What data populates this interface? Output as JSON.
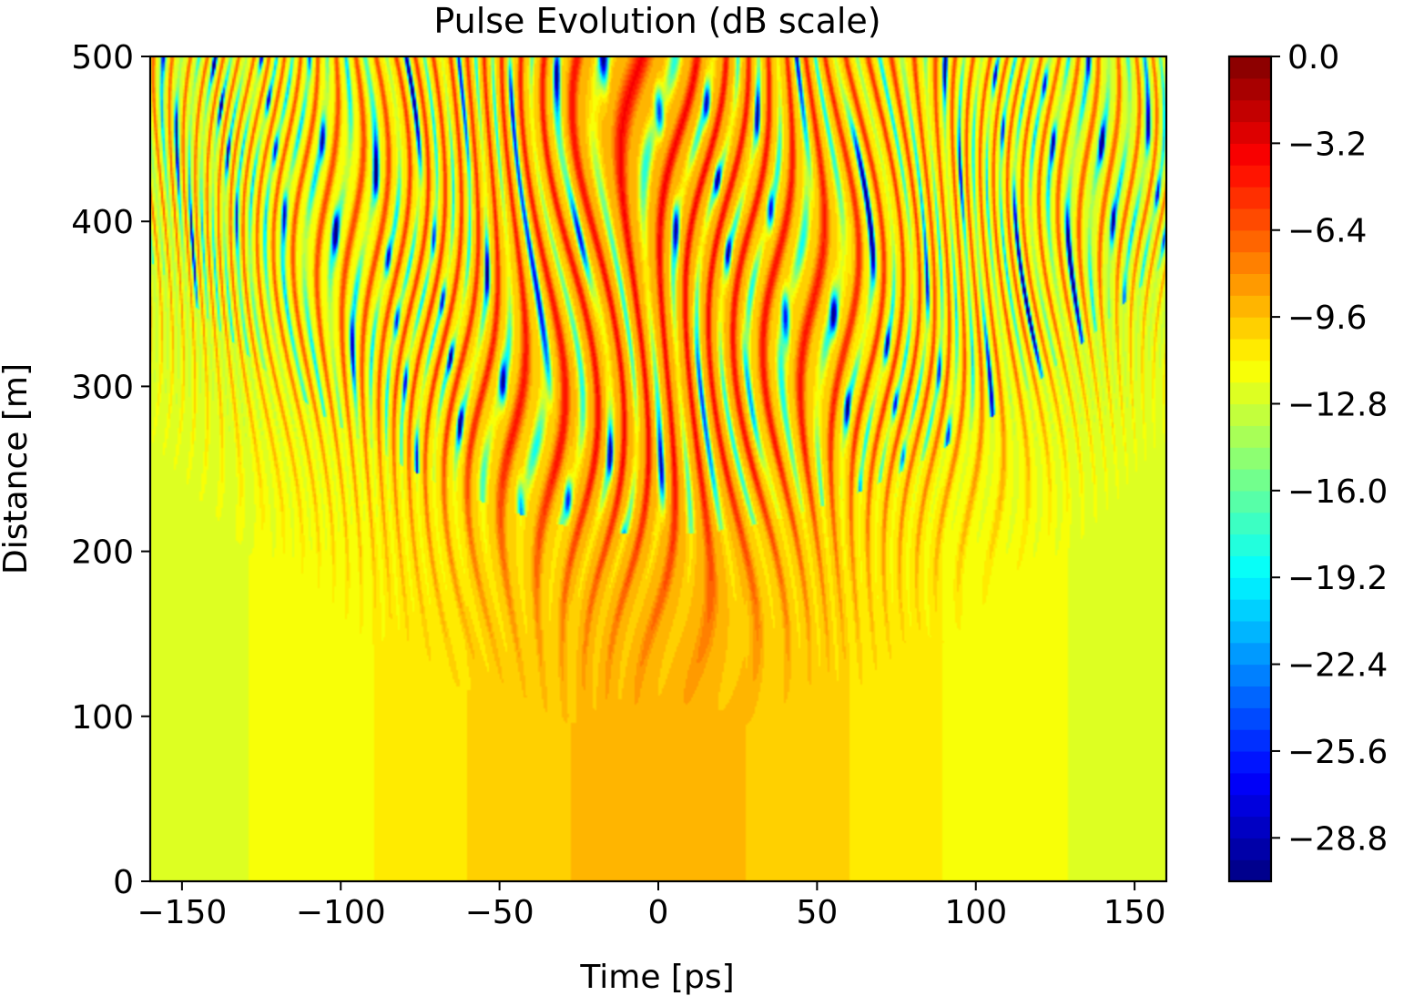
{
  "chart_data": {
    "type": "heatmap",
    "title": "Pulse Evolution (dB scale)",
    "xlabel": "Time [ps]",
    "ylabel": "Distance [m]",
    "xlim": [
      -160,
      160
    ],
    "ylim": [
      0,
      500
    ],
    "x_ticks": [
      -150,
      -100,
      -50,
      0,
      50,
      100,
      150
    ],
    "x_tick_labels": [
      "−150",
      "−100",
      "−50",
      "0",
      "50",
      "100",
      "150"
    ],
    "y_ticks": [
      0,
      100,
      200,
      300,
      400,
      500
    ],
    "y_tick_labels": [
      "0",
      "100",
      "200",
      "300",
      "400",
      "500"
    ],
    "colormap": "jet",
    "colorbar": {
      "vmin": -30.4,
      "vmax": 0.0,
      "levels": 38,
      "ticks": [
        0.0,
        -3.2,
        -6.4,
        -9.6,
        -12.8,
        -16.0,
        -19.2,
        -22.4,
        -25.6,
        -28.8
      ],
      "tick_labels": [
        "0.0",
        "−3.2",
        "−6.4",
        "−9.6",
        "−12.8",
        "−16.0",
        "−19.2",
        "−22.4",
        "−25.6",
        "−28.8"
      ]
    },
    "field_description_values": {
      "initial_pulse_peak_db": -9.0,
      "edge_background_db": -12.5,
      "breakup_onset_distance_m": 200,
      "min_level_db": -30.4,
      "max_level_db": 0.0
    },
    "grid": false
  }
}
